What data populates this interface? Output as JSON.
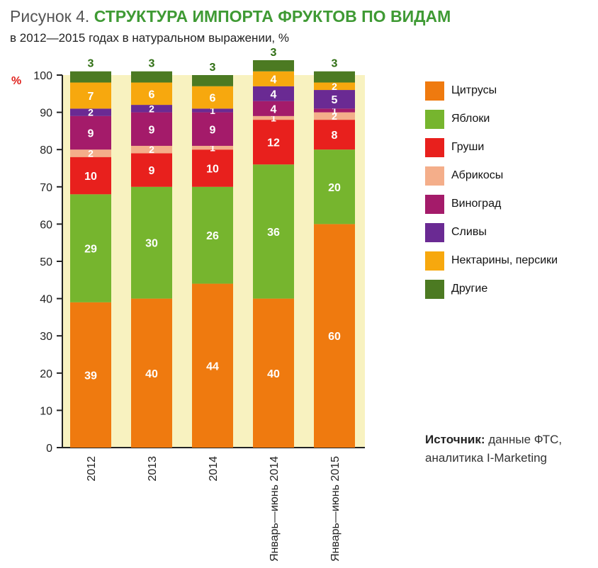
{
  "header": {
    "figure_label": "Рисунок 4.",
    "title": "СТРУКТУРА ИМПОРТА ФРУКТОВ ПО ВИДАМ",
    "subtitle": "в 2012—2015 годах в натуральном выражении, %"
  },
  "source": {
    "label": "Источник:",
    "line1": "данные ФТС,",
    "line2": "аналитика I-Marketing"
  },
  "colors": {
    "plot_background": "#f8f2c0",
    "axis": "#222222",
    "percent_sign": "#e0201c"
  },
  "chart_data": {
    "type": "bar",
    "stacked": true,
    "y_unit_label": "%",
    "ylim": [
      0,
      100
    ],
    "yticks": [
      0,
      10,
      20,
      30,
      40,
      50,
      60,
      70,
      80,
      90,
      100
    ],
    "categories": [
      "2012",
      "2013",
      "2014",
      "Январь—июнь 2014",
      "Январь—июнь 2015"
    ],
    "series": [
      {
        "name": "Цитрусы",
        "color": "#ef7a0f",
        "label_color": "#ffffff",
        "values": [
          39,
          40,
          44,
          40,
          60
        ]
      },
      {
        "name": "Яблоки",
        "color": "#76b52e",
        "label_color": "#ffffff",
        "values": [
          29,
          30,
          26,
          36,
          20
        ]
      },
      {
        "name": "Груши",
        "color": "#e8201d",
        "label_color": "#ffffff",
        "values": [
          10,
          9,
          10,
          12,
          8
        ]
      },
      {
        "name": "Абрикосы",
        "color": "#f4ae8a",
        "label_color": "#ffffff",
        "values": [
          2,
          2,
          1,
          1,
          2
        ]
      },
      {
        "name": "Виноград",
        "color": "#a41b6a",
        "label_color": "#ffffff",
        "values": [
          9,
          9,
          9,
          4,
          1
        ]
      },
      {
        "name": "Сливы",
        "color": "#6a2a93",
        "label_color": "#ffffff",
        "values": [
          2,
          2,
          1,
          4,
          5
        ]
      },
      {
        "name": "Нектарины, персики",
        "color": "#f7a80e",
        "label_color": "#ffffff",
        "values": [
          7,
          6,
          6,
          4,
          2
        ]
      },
      {
        "name": "Другие",
        "color": "#4c7a22",
        "label_color": "#2e6e12",
        "values": [
          3,
          3,
          3,
          3,
          3
        ]
      }
    ],
    "legend_position": "right",
    "grid": false
  }
}
